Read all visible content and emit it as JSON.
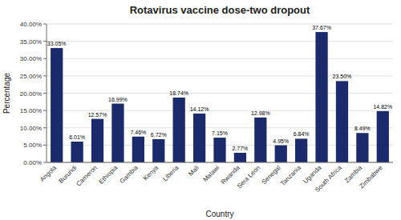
{
  "chart_data": {
    "type": "bar",
    "title": "Rotavirus vaccine dose-two dropout",
    "xlabel": "Country",
    "ylabel": "Percentage",
    "categories": [
      "Angola",
      "Burundi",
      "Cameron",
      "Ethiopia",
      "Gambia",
      "Kenya",
      "Liberia",
      "Mali",
      "Malawi",
      "Rwanda",
      "Sera Leon",
      "Senegal",
      "Tanzania",
      "Uganda",
      "South Africa",
      "Zambia",
      "Zimbabwe"
    ],
    "values": [
      33.05,
      6.01,
      12.57,
      16.99,
      7.46,
      6.72,
      18.74,
      14.12,
      7.15,
      2.77,
      12.98,
      4.95,
      6.84,
      37.67,
      23.5,
      8.49,
      14.82
    ],
    "value_labels": [
      "33.05%",
      "6.01%",
      "12.57%",
      "16.99%",
      "7.46%",
      "6.72%",
      "18.74%",
      "14.12%",
      "7.15%",
      "2.77%",
      "12.98%",
      "4.95%",
      "6.84%",
      "37.67%",
      "23.50%",
      "8.49%",
      "14.82%"
    ],
    "data_labels": true,
    "color": "#1b2a6b",
    "ylim": [
      0,
      40
    ],
    "yticks": [
      {
        "value": 0,
        "label": "0.00%"
      },
      {
        "value": 5,
        "label": "5.00%"
      },
      {
        "value": 10,
        "label": "10.00%"
      },
      {
        "value": 15,
        "label": "15.00%"
      },
      {
        "value": 20,
        "label": "20.00%"
      },
      {
        "value": 25,
        "label": "25.00%"
      },
      {
        "value": 30,
        "label": "30.00%"
      },
      {
        "value": 35,
        "label": "35.00%"
      },
      {
        "value": 40,
        "label": "40.00%"
      }
    ],
    "grid": true
  }
}
